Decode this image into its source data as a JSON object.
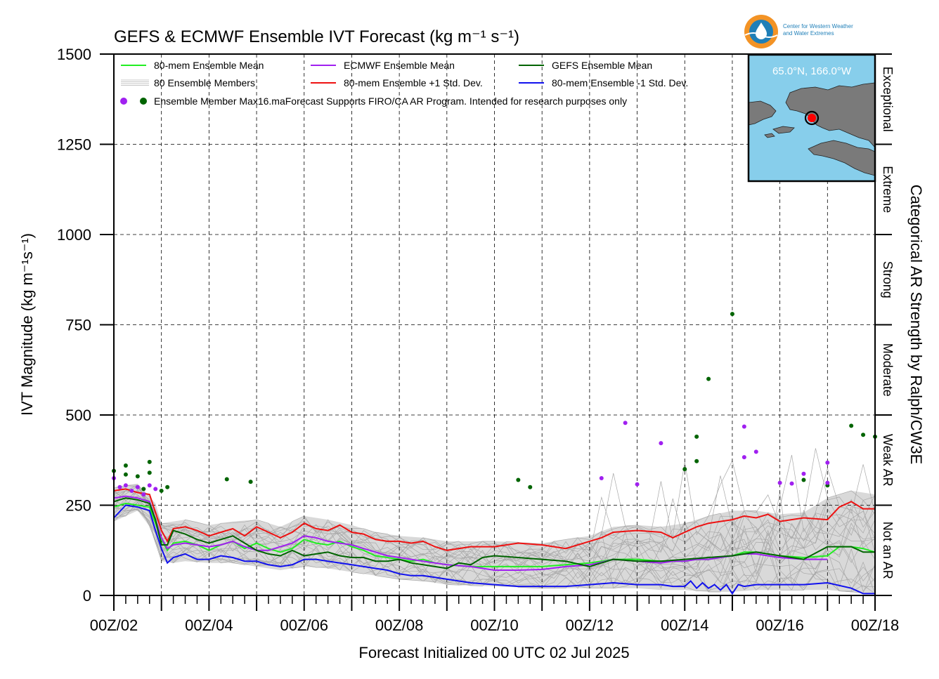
{
  "chart_data": {
    "type": "line",
    "title": "GEFS & ECMWF Ensemble IVT Forecast (kg m⁻¹ s⁻¹)",
    "ylabel": "IVT Magnitude (kg m⁻¹s⁻¹)",
    "xlabel": "Forecast Initialized 00 UTC 02 Jul 2025",
    "right_label": "Categorical AR Strength by Ralph/CW3E",
    "ylim": [
      0,
      1500
    ],
    "yticks": [
      0,
      250,
      500,
      750,
      1000,
      1250,
      1500
    ],
    "xlim_days": [
      2,
      18
    ],
    "x_tick_labels": [
      "00Z/02",
      "00Z/04",
      "00Z/06",
      "00Z/08",
      "00Z/10",
      "00Z/12",
      "00Z/14",
      "00Z/16",
      "00Z/18"
    ],
    "grid": true,
    "categories": [
      {
        "label": "Not an AR",
        "from": 0,
        "to": 250
      },
      {
        "label": "Weak AR",
        "from": 250,
        "to": 500
      },
      {
        "label": "Moderate",
        "from": 500,
        "to": 750
      },
      {
        "label": "Strong",
        "from": 750,
        "to": 1000
      },
      {
        "label": "Extreme",
        "from": 1000,
        "to": 1250
      },
      {
        "label": "Exceptional",
        "from": 1250,
        "to": 1500
      }
    ],
    "legend": {
      "placement": "top-left",
      "entries": [
        {
          "label": "80-mem Ensemble Mean",
          "color": "#22ee22",
          "style": "line"
        },
        {
          "label": "ECMWF Ensemble Mean",
          "color": "#a020f0",
          "style": "line"
        },
        {
          "label": "GEFS Ensemble Mean",
          "color": "#006400",
          "style": "line"
        },
        {
          "label": "80 Ensemble Members",
          "color": "#b0b0b0",
          "style": "members"
        },
        {
          "label": "80-mem Ensemble +1 Std. Dev.",
          "color": "#ee1111",
          "style": "line"
        },
        {
          "label": "80-mem Ensemble -1 Std. Dev.",
          "color": "#1111ee",
          "style": "line"
        },
        {
          "label": "Ensemble Member Max16.maForecast Supports FIRO/CA AR Program. Intended for research purposes only",
          "color": "#a020f0",
          "style": "dots"
        }
      ]
    },
    "series": [
      {
        "name": "80-mem Ensemble +1 Std. Dev.",
        "color": "#ee1111",
        "x": [
          2,
          2.25,
          2.5,
          2.75,
          2.875,
          3,
          3.125,
          3.25,
          3.5,
          3.75,
          4,
          4.25,
          4.5,
          4.75,
          5,
          5.25,
          5.5,
          5.75,
          6,
          6.25,
          6.5,
          6.75,
          7,
          7.25,
          7.5,
          7.75,
          8,
          8.25,
          8.5,
          8.75,
          9,
          9.5,
          10,
          10.5,
          11,
          11.5,
          12,
          12.25,
          12.5,
          13,
          13.5,
          13.75,
          14,
          14.25,
          14.5,
          14.75,
          15,
          15.25,
          15.5,
          15.75,
          16,
          16.5,
          17,
          17.25,
          17.5,
          17.75,
          18
        ],
        "y": [
          290,
          295,
          285,
          280,
          230,
          180,
          150,
          185,
          190,
          180,
          165,
          175,
          185,
          165,
          190,
          175,
          160,
          175,
          200,
          185,
          180,
          195,
          175,
          170,
          155,
          150,
          150,
          145,
          150,
          135,
          125,
          135,
          135,
          145,
          140,
          130,
          150,
          160,
          175,
          180,
          175,
          160,
          175,
          190,
          200,
          205,
          210,
          220,
          215,
          225,
          205,
          215,
          210,
          245,
          260,
          240,
          240
        ]
      },
      {
        "name": "80-mem Ensemble Mean",
        "color": "#22ee22",
        "x": [
          2,
          2.25,
          2.5,
          2.75,
          2.875,
          3,
          3.125,
          3.25,
          3.5,
          3.75,
          4,
          4.25,
          4.5,
          4.75,
          5,
          5.25,
          5.5,
          5.75,
          6,
          6.25,
          6.5,
          6.75,
          7,
          7.25,
          7.5,
          7.75,
          8,
          8.25,
          8.5,
          8.75,
          9,
          9.5,
          10,
          10.5,
          11,
          11.5,
          12,
          12.25,
          12.5,
          13,
          13.5,
          13.75,
          14,
          14.25,
          14.5,
          14.75,
          15,
          15.25,
          15.5,
          15.75,
          16,
          16.5,
          17,
          17.25,
          17.5,
          17.75,
          18
        ],
        "y": [
          245,
          255,
          250,
          245,
          200,
          155,
          125,
          145,
          150,
          140,
          125,
          140,
          150,
          130,
          145,
          130,
          120,
          130,
          155,
          145,
          140,
          150,
          135,
          125,
          110,
          105,
          100,
          95,
          100,
          90,
          85,
          80,
          80,
          80,
          80,
          85,
          90,
          95,
          100,
          100,
          95,
          95,
          95,
          100,
          100,
          105,
          110,
          120,
          120,
          115,
          110,
          105,
          110,
          135,
          135,
          130,
          120
        ]
      },
      {
        "name": "ECMWF Ensemble Mean",
        "color": "#a020f0",
        "x": [
          2,
          2.25,
          2.5,
          2.75,
          2.875,
          3,
          3.125,
          3.25,
          3.5,
          3.75,
          4,
          4.25,
          4.5,
          4.75,
          5,
          5.25,
          5.5,
          5.75,
          6,
          6.25,
          6.5,
          6.75,
          7,
          7.25,
          7.5,
          7.75,
          8,
          8.25,
          8.5,
          8.75,
          9,
          9.5,
          10,
          10.5,
          11,
          11.5,
          12,
          12.25,
          12.5,
          13,
          13.5,
          13.75,
          14,
          14.25,
          14.5,
          14.75,
          15,
          15.25,
          15.5,
          15.75,
          16,
          16.5,
          17
        ],
        "y": [
          270,
          275,
          270,
          260,
          210,
          160,
          130,
          140,
          145,
          140,
          135,
          140,
          150,
          135,
          125,
          125,
          135,
          145,
          165,
          160,
          150,
          145,
          140,
          130,
          120,
          110,
          105,
          100,
          95,
          90,
          85,
          80,
          70,
          70,
          72,
          80,
          85,
          92,
          100,
          95,
          90,
          95,
          95,
          100,
          100,
          105,
          110,
          115,
          115,
          110,
          105,
          100,
          100
        ]
      },
      {
        "name": "GEFS Ensemble Mean",
        "color": "#006400",
        "x": [
          2,
          2.25,
          2.5,
          2.75,
          2.875,
          3,
          3.125,
          3.25,
          3.5,
          3.75,
          4,
          4.25,
          4.5,
          4.75,
          5,
          5.25,
          5.5,
          5.75,
          6,
          6.25,
          6.5,
          6.75,
          7,
          7.25,
          7.5,
          7.75,
          8,
          8.25,
          8.5,
          8.75,
          9,
          9.25,
          9.5,
          9.75,
          10,
          10.5,
          11,
          11.5,
          12,
          12.5,
          13,
          13.5,
          14,
          14.5,
          15,
          15.5,
          16,
          16.5,
          17,
          17.5,
          17.75,
          18
        ],
        "y": [
          260,
          270,
          265,
          255,
          210,
          140,
          140,
          180,
          170,
          155,
          145,
          155,
          165,
          145,
          125,
          115,
          110,
          125,
          110,
          115,
          120,
          110,
          105,
          105,
          95,
          95,
          100,
          90,
          85,
          80,
          75,
          90,
          85,
          105,
          110,
          105,
          100,
          95,
          80,
          100,
          95,
          95,
          100,
          105,
          110,
          120,
          110,
          100,
          135,
          135,
          120,
          120
        ]
      },
      {
        "name": "80-mem Ensemble -1 Std. Dev.",
        "color": "#1111ee",
        "x": [
          2,
          2.25,
          2.5,
          2.75,
          2.875,
          3,
          3.125,
          3.25,
          3.5,
          3.75,
          4,
          4.25,
          4.5,
          4.75,
          5,
          5.25,
          5.5,
          5.75,
          6,
          6.25,
          6.5,
          6.75,
          7,
          7.25,
          7.5,
          7.75,
          8,
          8.25,
          8.5,
          8.75,
          9,
          9.5,
          10,
          10.5,
          11,
          11.5,
          12,
          12.5,
          13,
          13.5,
          13.75,
          14,
          14.125,
          14.25,
          14.375,
          14.5,
          14.625,
          14.75,
          14.875,
          15,
          15.125,
          15.25,
          15.5,
          16,
          16.5,
          17,
          17.5,
          17.75,
          18
        ],
        "y": [
          215,
          250,
          245,
          235,
          180,
          130,
          90,
          105,
          115,
          100,
          100,
          110,
          105,
          95,
          95,
          85,
          80,
          85,
          100,
          100,
          95,
          90,
          85,
          80,
          75,
          70,
          60,
          55,
          55,
          50,
          45,
          35,
          30,
          25,
          25,
          25,
          30,
          35,
          30,
          30,
          25,
          25,
          40,
          20,
          35,
          20,
          30,
          15,
          30,
          5,
          30,
          25,
          30,
          30,
          30,
          35,
          20,
          5,
          5
        ]
      }
    ],
    "envelope": {
      "x": [
        2,
        2.5,
        2.875,
        3,
        3.25,
        3.5,
        4,
        4.5,
        5,
        5.5,
        6,
        6.5,
        7,
        7.5,
        8,
        8.5,
        9,
        10,
        11,
        12,
        12.5,
        13,
        13.5,
        14,
        14.5,
        15,
        15.5,
        16,
        16.5,
        17,
        17.5,
        18
      ],
      "y_low": [
        205,
        235,
        170,
        95,
        90,
        95,
        90,
        90,
        80,
        70,
        80,
        75,
        65,
        55,
        45,
        40,
        30,
        25,
        20,
        20,
        20,
        20,
        15,
        15,
        10,
        10,
        15,
        15,
        15,
        15,
        10,
        5
      ],
      "y_high": [
        300,
        310,
        255,
        200,
        205,
        210,
        195,
        205,
        210,
        190,
        220,
        210,
        195,
        175,
        165,
        160,
        150,
        150,
        145,
        165,
        190,
        195,
        190,
        200,
        220,
        235,
        235,
        225,
        230,
        270,
        290,
        280
      ]
    },
    "member_maxima": [
      {
        "model": "GEFS",
        "x": 2.0,
        "y": 345
      },
      {
        "model": "GEFS",
        "x": 2.25,
        "y": 360
      },
      {
        "model": "GEFS",
        "x": 2.25,
        "y": 335
      },
      {
        "model": "GEFS",
        "x": 2.5,
        "y": 330
      },
      {
        "model": "GEFS",
        "x": 2.625,
        "y": 295
      },
      {
        "model": "GEFS",
        "x": 2.75,
        "y": 370
      },
      {
        "model": "GEFS",
        "x": 2.75,
        "y": 340
      },
      {
        "model": "GEFS",
        "x": 3.0,
        "y": 290
      },
      {
        "model": "GEFS",
        "x": 3.125,
        "y": 300
      },
      {
        "model": "GEFS",
        "x": 4.375,
        "y": 322
      },
      {
        "model": "GEFS",
        "x": 4.875,
        "y": 315
      },
      {
        "model": "GEFS",
        "x": 10.5,
        "y": 320
      },
      {
        "model": "GEFS",
        "x": 10.75,
        "y": 300
      },
      {
        "model": "GEFS",
        "x": 14.0,
        "y": 350
      },
      {
        "model": "GEFS",
        "x": 14.25,
        "y": 440
      },
      {
        "model": "GEFS",
        "x": 14.25,
        "y": 372
      },
      {
        "model": "GEFS",
        "x": 14.5,
        "y": 600
      },
      {
        "model": "GEFS",
        "x": 15.0,
        "y": 780
      },
      {
        "model": "GEFS",
        "x": 16.5,
        "y": 320
      },
      {
        "model": "GEFS",
        "x": 17.0,
        "y": 305
      },
      {
        "model": "GEFS",
        "x": 17.5,
        "y": 470
      },
      {
        "model": "GEFS",
        "x": 17.75,
        "y": 445
      },
      {
        "model": "GEFS",
        "x": 18.0,
        "y": 440
      },
      {
        "model": "ECMWF",
        "x": 2.0,
        "y": 325
      },
      {
        "model": "ECMWF",
        "x": 2.125,
        "y": 300
      },
      {
        "model": "ECMWF",
        "x": 2.25,
        "y": 305
      },
      {
        "model": "ECMWF",
        "x": 2.375,
        "y": 290
      },
      {
        "model": "ECMWF",
        "x": 2.5,
        "y": 300
      },
      {
        "model": "ECMWF",
        "x": 2.625,
        "y": 280
      },
      {
        "model": "ECMWF",
        "x": 2.75,
        "y": 305
      },
      {
        "model": "ECMWF",
        "x": 2.875,
        "y": 295
      },
      {
        "model": "ECMWF",
        "x": 12.25,
        "y": 325
      },
      {
        "model": "ECMWF",
        "x": 12.75,
        "y": 478
      },
      {
        "model": "ECMWF",
        "x": 13.0,
        "y": 308
      },
      {
        "model": "ECMWF",
        "x": 13.5,
        "y": 422
      },
      {
        "model": "ECMWF",
        "x": 15.25,
        "y": 468
      },
      {
        "model": "ECMWF",
        "x": 15.25,
        "y": 383
      },
      {
        "model": "ECMWF",
        "x": 15.5,
        "y": 398
      },
      {
        "model": "ECMWF",
        "x": 16.0,
        "y": 312
      },
      {
        "model": "ECMWF",
        "x": 16.25,
        "y": 310
      },
      {
        "model": "ECMWF",
        "x": 16.5,
        "y": 337
      },
      {
        "model": "ECMWF",
        "x": 17.0,
        "y": 368
      },
      {
        "model": "ECMWF",
        "x": 17.0,
        "y": 312
      }
    ],
    "members_count": 80
  },
  "map_inset": {
    "location_label": "65.0°N, 166.0°W",
    "ocean_color": "#87ceeb",
    "land_color": "#7a7a7a",
    "marker_color": "#ff0000"
  },
  "logo": {
    "line1": "Center for Western Weather",
    "line2": "and Water Extremes",
    "colors": {
      "orange": "#f39325",
      "blue": "#1f7fb8"
    }
  }
}
